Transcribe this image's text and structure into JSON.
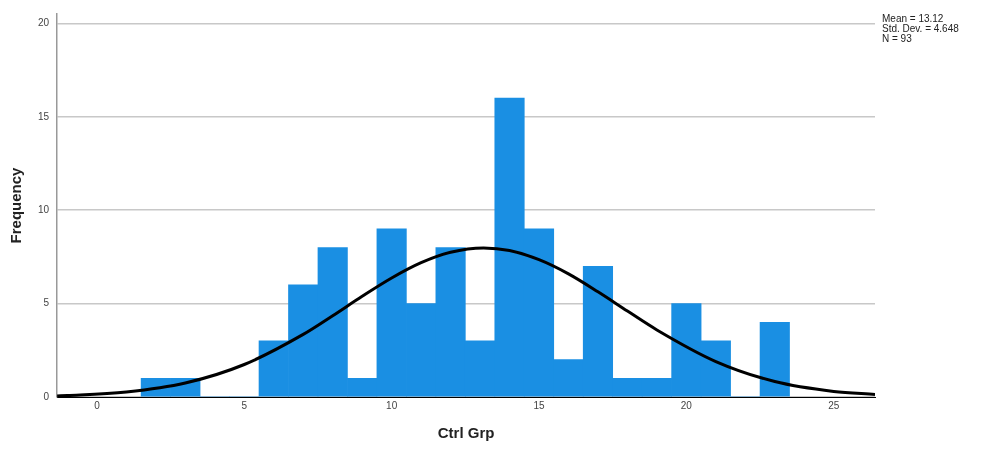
{
  "chart_data": {
    "type": "histogram",
    "xlabel": "Ctrl Grp",
    "ylabel": "Frequency",
    "bins": [
      1.5,
      2.5,
      3.5,
      4.5,
      5.5,
      6.5,
      7.5,
      8.5,
      9.5,
      10.5,
      11.5,
      12.5,
      13.5,
      14.5,
      15.5,
      16.5,
      17.5,
      18.5,
      19.5,
      20.5,
      21.5,
      22.5,
      23.5
    ],
    "values": [
      1,
      1,
      0,
      0,
      3,
      6,
      8,
      1,
      9,
      5,
      8,
      3,
      16,
      9,
      2,
      7,
      1,
      1,
      5,
      3,
      0,
      4
    ],
    "color": "#1a8fe3",
    "series": [
      {
        "type": "line",
        "color": "#000000",
        "x": [
          -1.35,
          -1,
          1,
          3,
          5,
          7,
          8,
          9,
          10,
          11,
          12,
          13.12,
          14,
          15,
          16,
          17,
          18,
          19,
          21,
          23,
          25,
          26.4
        ],
        "values": [
          0.06,
          0.08,
          0.27,
          0.75,
          1.74,
          3.35,
          4.35,
          5.39,
          6.37,
          7.19,
          7.75,
          7.98,
          7.84,
          7.35,
          6.59,
          5.63,
          4.6,
          3.59,
          1.9,
          0.83,
          0.3,
          0.14
        ]
      }
    ],
    "xlim": [
      -1.35,
      26.4
    ],
    "xticks": [
      0,
      5,
      10,
      15,
      20,
      25
    ],
    "ylim": [
      0,
      20.5
    ],
    "yticks": [
      0,
      5,
      10,
      15,
      20
    ],
    "grid": "y",
    "marker": "none",
    "annotations": [
      "Mean = 13.12",
      "Std. Dev. = 4.648",
      "N = 93"
    ]
  }
}
